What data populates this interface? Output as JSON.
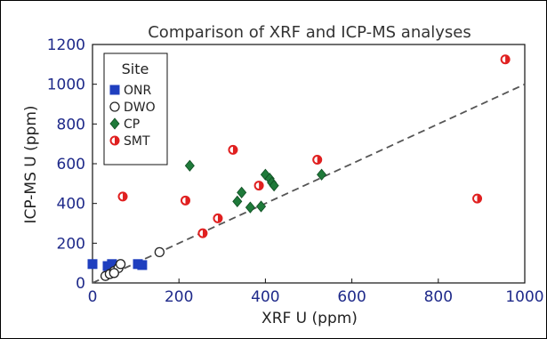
{
  "chart_data": {
    "type": "scatter",
    "title": "Comparison of XRF and ICP-MS analyses",
    "xlabel": "XRF U (ppm)",
    "ylabel": "ICP-MS U (ppm)",
    "xlim": [
      0,
      1000
    ],
    "ylim": [
      0,
      1200
    ],
    "xticks": [
      0,
      200,
      400,
      600,
      800,
      1000
    ],
    "yticks": [
      0,
      200,
      400,
      600,
      800,
      1000,
      1200
    ],
    "grid": false,
    "legend_position": "top-left",
    "legend_title": "Site",
    "reference_line": {
      "style": "dashed",
      "color": "#555555",
      "from": [
        0,
        0
      ],
      "to": [
        1000,
        1000
      ]
    },
    "series": [
      {
        "name": "ONR",
        "marker": "filled-square",
        "color": "#1f3fbf",
        "points": [
          [
            0,
            95
          ],
          [
            35,
            85
          ],
          [
            45,
            95
          ],
          [
            105,
            95
          ],
          [
            115,
            90
          ]
        ]
      },
      {
        "name": "DWO",
        "marker": "open-circle",
        "color": "#222222",
        "points": [
          [
            30,
            35
          ],
          [
            40,
            45
          ],
          [
            50,
            60
          ],
          [
            60,
            75
          ],
          [
            65,
            95
          ],
          [
            50,
            50
          ],
          [
            155,
            155
          ]
        ]
      },
      {
        "name": "CP",
        "marker": "filled-diamond",
        "color": "#1f7a3a",
        "points": [
          [
            225,
            590
          ],
          [
            335,
            410
          ],
          [
            345,
            455
          ],
          [
            365,
            380
          ],
          [
            390,
            385
          ],
          [
            400,
            545
          ],
          [
            410,
            525
          ],
          [
            415,
            505
          ],
          [
            420,
            490
          ],
          [
            530,
            545
          ]
        ]
      },
      {
        "name": "SMT",
        "marker": "half-circle",
        "color": "#e02020",
        "points": [
          [
            70,
            435
          ],
          [
            215,
            415
          ],
          [
            255,
            250
          ],
          [
            290,
            325
          ],
          [
            325,
            670
          ],
          [
            385,
            490
          ],
          [
            520,
            620
          ],
          [
            890,
            425
          ],
          [
            955,
            1125
          ]
        ]
      }
    ]
  }
}
